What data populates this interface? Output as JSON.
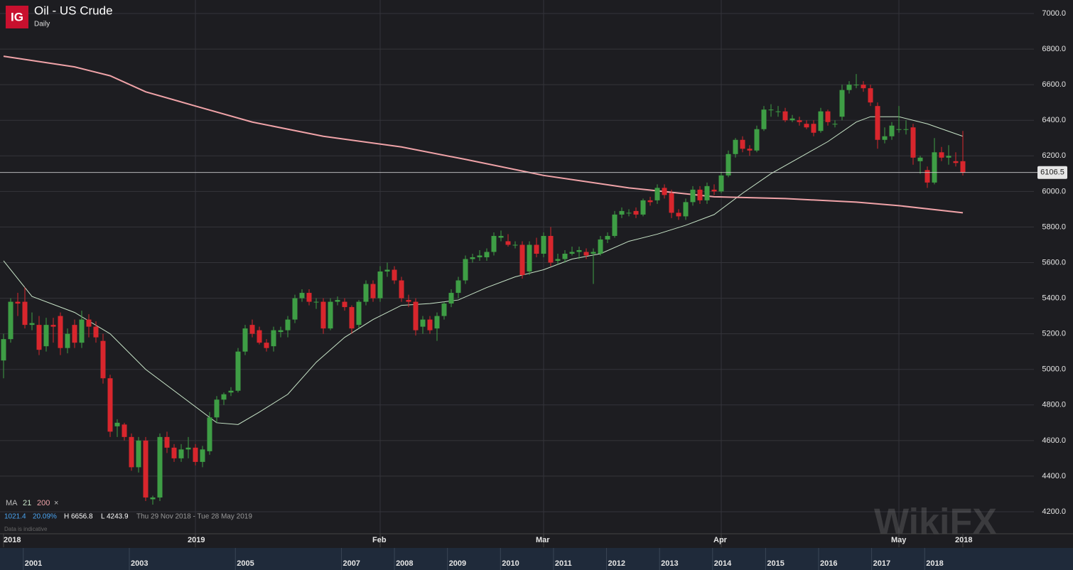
{
  "header": {
    "logo": "IG",
    "title": "Oil - US Crude",
    "interval": "Daily"
  },
  "info": {
    "ma_label": "MA",
    "close_icon": "×",
    "change": "1021.4",
    "change_pct": "20.09%",
    "high": "H 6656.8",
    "low": "L 4243.9",
    "range": "Thu 29 Nov 2018 - Tue 28 May 2019",
    "note": "Data is indicative"
  },
  "watermark": "WikiFX",
  "chart_data": {
    "type": "candlestick",
    "ylim": [
      4200,
      7000
    ],
    "yticks": [
      {
        "value": 4200,
        "label": "4200.0"
      },
      {
        "value": 4400,
        "label": "4400.0"
      },
      {
        "value": 4600,
        "label": "4600.0"
      },
      {
        "value": 4800,
        "label": "4800.0"
      },
      {
        "value": 5000,
        "label": "5000.0"
      },
      {
        "value": 5200,
        "label": "5200.0"
      },
      {
        "value": 5400,
        "label": "5400.0"
      },
      {
        "value": 5600,
        "label": "5600.0"
      },
      {
        "value": 5800,
        "label": "5800.0"
      },
      {
        "value": 6000,
        "label": "6000.0"
      },
      {
        "value": 6200,
        "label": "6200.0"
      },
      {
        "value": 6400,
        "label": "6400.0"
      },
      {
        "value": 6600,
        "label": "6600.0"
      },
      {
        "value": 6800,
        "label": "6800.0"
      },
      {
        "value": 7000,
        "label": "7000.0"
      }
    ],
    "grid": true,
    "up_color": "#3e9e45",
    "down_color": "#d8262d",
    "last": 6106.5,
    "xlabels": [
      {
        "index": 0,
        "label": "2018"
      },
      {
        "index": 27,
        "label": "2019"
      },
      {
        "index": 53,
        "label": "Feb"
      },
      {
        "index": 76,
        "label": "Mar"
      },
      {
        "index": 101,
        "label": "Apr"
      },
      {
        "index": 126,
        "label": "May"
      },
      {
        "index": 135,
        "label": "2018"
      }
    ],
    "ohlc": [
      [
        5050,
        5200,
        4950,
        5170
      ],
      [
        5170,
        5400,
        5150,
        5380
      ],
      [
        5380,
        5430,
        5300,
        5370
      ],
      [
        5380,
        5460,
        5230,
        5250
      ],
      [
        5250,
        5320,
        5220,
        5260
      ],
      [
        5250,
        5300,
        5080,
        5110
      ],
      [
        5130,
        5290,
        5100,
        5250
      ],
      [
        5250,
        5290,
        5150,
        5240
      ],
      [
        5300,
        5320,
        5080,
        5120
      ],
      [
        5120,
        5230,
        5090,
        5200
      ],
      [
        5250,
        5280,
        5120,
        5150
      ],
      [
        5150,
        5330,
        5120,
        5280
      ],
      [
        5280,
        5310,
        5180,
        5240
      ],
      [
        5240,
        5270,
        5150,
        5180
      ],
      [
        5160,
        5200,
        4920,
        4950
      ],
      [
        4950,
        4970,
        4620,
        4650
      ],
      [
        4680,
        4720,
        4620,
        4700
      ],
      [
        4690,
        4700,
        4600,
        4620
      ],
      [
        4620,
        4640,
        4430,
        4450
      ],
      [
        4450,
        4620,
        4420,
        4600
      ],
      [
        4600,
        4620,
        4260,
        4280
      ],
      [
        4270,
        4290,
        4240,
        4280
      ],
      [
        4280,
        4640,
        4260,
        4620
      ],
      [
        4620,
        4650,
        4530,
        4560
      ],
      [
        4560,
        4580,
        4480,
        4500
      ],
      [
        4500,
        4580,
        4480,
        4550
      ],
      [
        4550,
        4620,
        4500,
        4560
      ],
      [
        4560,
        4580,
        4460,
        4480
      ],
      [
        4480,
        4570,
        4450,
        4550
      ],
      [
        4540,
        4760,
        4520,
        4730
      ],
      [
        4730,
        4850,
        4700,
        4830
      ],
      [
        4830,
        4870,
        4800,
        4860
      ],
      [
        4870,
        4900,
        4850,
        4880
      ],
      [
        4880,
        5120,
        4870,
        5100
      ],
      [
        5100,
        5250,
        5080,
        5230
      ],
      [
        5250,
        5280,
        5180,
        5200
      ],
      [
        5220,
        5240,
        5140,
        5150
      ],
      [
        5150,
        5170,
        5100,
        5120
      ],
      [
        5130,
        5240,
        5100,
        5220
      ],
      [
        5210,
        5240,
        5180,
        5220
      ],
      [
        5220,
        5300,
        5180,
        5280
      ],
      [
        5280,
        5420,
        5260,
        5400
      ],
      [
        5400,
        5450,
        5380,
        5430
      ],
      [
        5430,
        5450,
        5360,
        5380
      ],
      [
        5380,
        5400,
        5340,
        5380
      ],
      [
        5380,
        5400,
        5200,
        5230
      ],
      [
        5230,
        5400,
        5220,
        5380
      ],
      [
        5380,
        5410,
        5360,
        5390
      ],
      [
        5380,
        5400,
        5330,
        5350
      ],
      [
        5350,
        5360,
        5200,
        5230
      ],
      [
        5250,
        5390,
        5230,
        5380
      ],
      [
        5380,
        5500,
        5360,
        5480
      ],
      [
        5480,
        5500,
        5380,
        5400
      ],
      [
        5400,
        5580,
        5380,
        5550
      ],
      [
        5550,
        5600,
        5520,
        5560
      ],
      [
        5560,
        5580,
        5480,
        5500
      ],
      [
        5500,
        5520,
        5380,
        5400
      ],
      [
        5390,
        5420,
        5350,
        5380
      ],
      [
        5380,
        5400,
        5190,
        5220
      ],
      [
        5240,
        5300,
        5200,
        5280
      ],
      [
        5280,
        5300,
        5200,
        5220
      ],
      [
        5230,
        5320,
        5160,
        5300
      ],
      [
        5300,
        5380,
        5280,
        5370
      ],
      [
        5370,
        5450,
        5350,
        5430
      ],
      [
        5430,
        5520,
        5400,
        5500
      ],
      [
        5500,
        5640,
        5480,
        5620
      ],
      [
        5620,
        5650,
        5600,
        5630
      ],
      [
        5630,
        5670,
        5610,
        5640
      ],
      [
        5630,
        5680,
        5610,
        5660
      ],
      [
        5660,
        5770,
        5640,
        5750
      ],
      [
        5740,
        5780,
        5720,
        5750
      ],
      [
        5720,
        5760,
        5690,
        5700
      ],
      [
        5700,
        5720,
        5680,
        5700
      ],
      [
        5700,
        5720,
        5510,
        5530
      ],
      [
        5550,
        5720,
        5530,
        5700
      ],
      [
        5700,
        5740,
        5630,
        5650
      ],
      [
        5650,
        5770,
        5630,
        5750
      ],
      [
        5750,
        5800,
        5580,
        5600
      ],
      [
        5610,
        5650,
        5590,
        5620
      ],
      [
        5620,
        5670,
        5600,
        5650
      ],
      [
        5650,
        5690,
        5640,
        5660
      ],
      [
        5660,
        5690,
        5620,
        5670
      ],
      [
        5660,
        5680,
        5620,
        5640
      ],
      [
        5650,
        5680,
        5480,
        5660
      ],
      [
        5650,
        5750,
        5640,
        5730
      ],
      [
        5730,
        5770,
        5710,
        5750
      ],
      [
        5750,
        5890,
        5740,
        5870
      ],
      [
        5870,
        5910,
        5850,
        5890
      ],
      [
        5880,
        5900,
        5860,
        5880
      ],
      [
        5890,
        5910,
        5850,
        5870
      ],
      [
        5870,
        5960,
        5860,
        5950
      ],
      [
        5950,
        5970,
        5920,
        5940
      ],
      [
        5950,
        6040,
        5930,
        6020
      ],
      [
        6020,
        6040,
        5960,
        5980
      ],
      [
        5990,
        6010,
        5850,
        5880
      ],
      [
        5880,
        5900,
        5840,
        5860
      ],
      [
        5860,
        5960,
        5840,
        5940
      ],
      [
        5940,
        6030,
        5920,
        6010
      ],
      [
        6010,
        6030,
        5930,
        5950
      ],
      [
        5950,
        6050,
        5930,
        6030
      ],
      [
        6010,
        6040,
        5980,
        6000
      ],
      [
        6000,
        6110,
        5990,
        6090
      ],
      [
        6090,
        6230,
        6080,
        6210
      ],
      [
        6210,
        6300,
        6190,
        6290
      ],
      [
        6290,
        6310,
        6220,
        6240
      ],
      [
        6240,
        6260,
        6200,
        6230
      ],
      [
        6230,
        6370,
        6220,
        6350
      ],
      [
        6350,
        6480,
        6340,
        6460
      ],
      [
        6460,
        6490,
        6420,
        6460
      ],
      [
        6450,
        6480,
        6420,
        6450
      ],
      [
        6450,
        6470,
        6390,
        6400
      ],
      [
        6400,
        6430,
        6390,
        6410
      ],
      [
        6400,
        6420,
        6370,
        6390
      ],
      [
        6380,
        6400,
        6350,
        6360
      ],
      [
        6380,
        6400,
        6310,
        6330
      ],
      [
        6340,
        6470,
        6330,
        6450
      ],
      [
        6450,
        6460,
        6370,
        6390
      ],
      [
        6380,
        6400,
        6360,
        6380
      ],
      [
        6420,
        6600,
        6400,
        6570
      ],
      [
        6570,
        6620,
        6550,
        6600
      ],
      [
        6600,
        6660,
        6580,
        6600
      ],
      [
        6600,
        6620,
        6560,
        6580
      ],
      [
        6580,
        6600,
        6480,
        6500
      ],
      [
        6480,
        6500,
        6240,
        6290
      ],
      [
        6290,
        6360,
        6270,
        6310
      ],
      [
        6310,
        6390,
        6290,
        6370
      ],
      [
        6350,
        6480,
        6330,
        6350
      ],
      [
        6350,
        6400,
        6320,
        6350
      ],
      [
        6360,
        6380,
        6150,
        6190
      ],
      [
        6170,
        6200,
        6100,
        6190
      ],
      [
        6120,
        6140,
        6020,
        6050
      ],
      [
        6050,
        6300,
        6040,
        6220
      ],
      [
        6220,
        6250,
        6170,
        6190
      ],
      [
        6190,
        6260,
        6150,
        6200
      ],
      [
        6170,
        6220,
        6140,
        6160
      ],
      [
        6170,
        6340,
        6090,
        6106.5
      ]
    ],
    "series": [
      {
        "name": "21",
        "color": "#c9e6c9",
        "x": [
          0,
          4,
          10,
          15,
          20,
          25,
          30,
          33,
          36,
          40,
          44,
          48,
          52,
          56,
          60,
          64,
          68,
          72,
          76,
          80,
          84,
          88,
          92,
          96,
          100,
          104,
          108,
          112,
          116,
          120,
          122,
          126,
          130,
          135
        ],
        "values": [
          5610,
          5410,
          5320,
          5200,
          5000,
          4850,
          4700,
          4690,
          4760,
          4860,
          5040,
          5180,
          5280,
          5360,
          5370,
          5390,
          5460,
          5520,
          5560,
          5620,
          5650,
          5720,
          5760,
          5810,
          5870,
          5990,
          6100,
          6190,
          6280,
          6390,
          6420,
          6420,
          6380,
          6310
        ]
      },
      {
        "name": "200",
        "color": "#f0a3a8",
        "x": [
          0,
          10,
          15,
          20,
          27,
          35,
          45,
          56,
          65,
          76,
          88,
          100,
          110,
          120,
          126,
          135
        ],
        "values": [
          6760,
          6700,
          6650,
          6560,
          6480,
          6390,
          6310,
          6250,
          6180,
          6090,
          6020,
          5970,
          5960,
          5940,
          5920,
          5880
        ]
      }
    ]
  },
  "navigator": {
    "xlim": [
      2000.4,
      2019.9
    ],
    "xticks": [
      2001,
      2003,
      2005,
      2007,
      2008,
      2009,
      2010,
      2011,
      2012,
      2013,
      2014,
      2015,
      2016,
      2017,
      2018
    ]
  }
}
